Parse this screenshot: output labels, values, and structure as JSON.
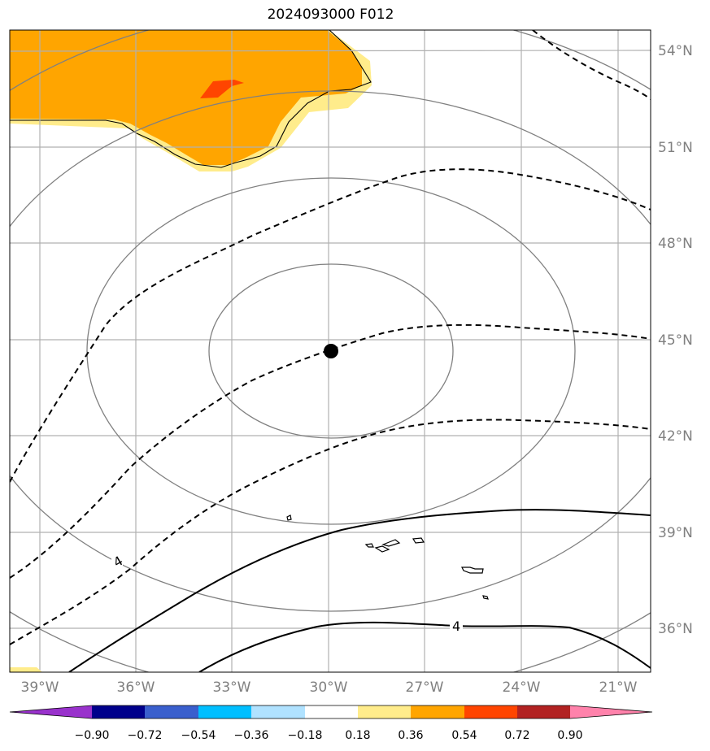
{
  "title": "2024093000 F012",
  "map": {
    "projection": "Lambert conformal (north-polar)",
    "lon_range_deg": [
      -40,
      -20
    ],
    "lat_range_deg": [
      35,
      54.5
    ],
    "gridlines": true,
    "lon_ticks": [
      {
        "label": "39°W",
        "value": -39
      },
      {
        "label": "36°W",
        "value": -36
      },
      {
        "label": "33°W",
        "value": -33
      },
      {
        "label": "30°W",
        "value": -30
      },
      {
        "label": "27°W",
        "value": -27
      },
      {
        "label": "24°W",
        "value": -24
      },
      {
        "label": "21°W",
        "value": -21
      }
    ],
    "lat_ticks": [
      {
        "label": "54°N",
        "value": 54
      },
      {
        "label": "51°N",
        "value": 51
      },
      {
        "label": "48°N",
        "value": 48
      },
      {
        "label": "45°N",
        "value": 45
      },
      {
        "label": "42°N",
        "value": 42
      },
      {
        "label": "39°N",
        "value": 39
      },
      {
        "label": "36°N",
        "value": 36
      }
    ],
    "center_marker": {
      "lon": -30,
      "lat": 44.6,
      "color": "#000000"
    },
    "contour_labels": [
      {
        "text": "4",
        "style": "dashed"
      },
      {
        "text": "4",
        "style": "solid"
      }
    ],
    "colors": {
      "range_rings": "#808080",
      "contours": "#000000",
      "grid": "#b0b0b0"
    }
  },
  "colorbar": {
    "ticks": [
      "−0.90",
      "−0.72",
      "−0.54",
      "−0.36",
      "−0.18",
      "0.18",
      "0.36",
      "0.54",
      "0.72",
      "0.90"
    ],
    "colors": [
      "#9932CC",
      "#00008B",
      "#3A5FCD",
      "#00BFFF",
      "#B0E2FF",
      "#FFFFFF",
      "#FFEC8B",
      "#FFA500",
      "#FF4500",
      "#B22222",
      "#FF82AB"
    ],
    "extend": "both"
  }
}
